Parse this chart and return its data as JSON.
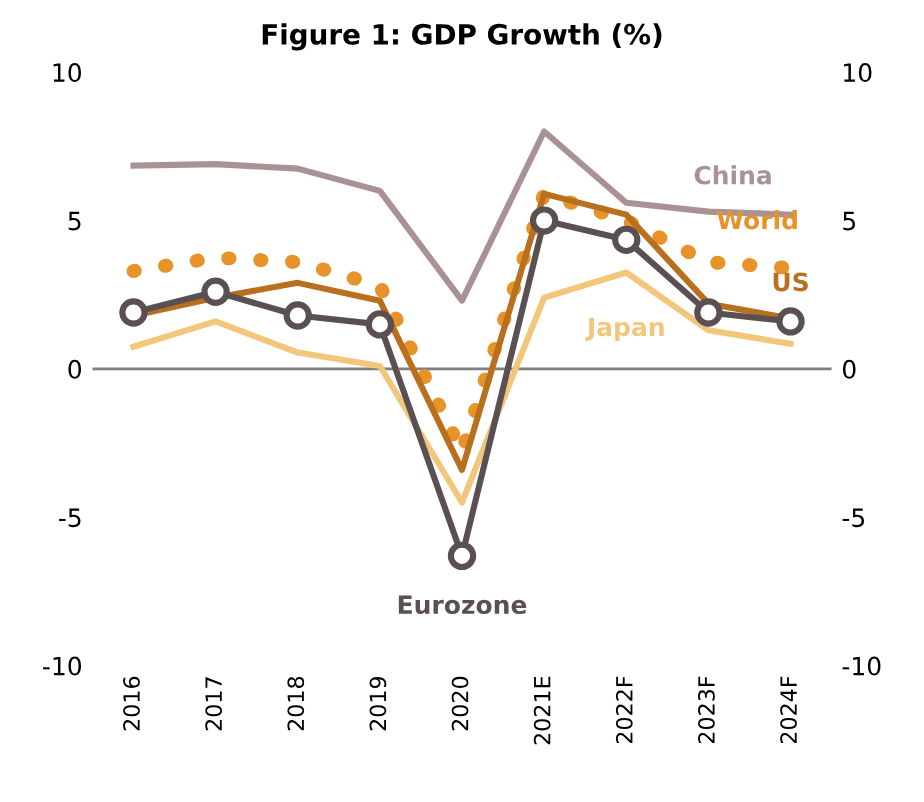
{
  "chart_data": {
    "type": "line",
    "title": "Figure 1: GDP Growth (%)",
    "categories": [
      "2016",
      "2017",
      "2018",
      "2019",
      "2020",
      "2021E",
      "2022F",
      "2023F",
      "2024F"
    ],
    "series": [
      {
        "name": "China",
        "color": "#a89294",
        "values": [
          6.85,
          6.9,
          6.75,
          6.0,
          2.3,
          8.0,
          5.6,
          5.3,
          5.2
        ]
      },
      {
        "name": "World",
        "color": "#e8932a",
        "line_style": "dotted",
        "values": [
          3.3,
          3.75,
          3.6,
          2.8,
          -2.8,
          5.9,
          5.0,
          3.6,
          3.4
        ]
      },
      {
        "name": "US",
        "color": "#b86f1e",
        "values": [
          1.8,
          2.4,
          2.9,
          2.3,
          -3.4,
          5.9,
          5.2,
          2.2,
          1.7
        ]
      },
      {
        "name": "Japan",
        "color": "#f3c77b",
        "values": [
          0.75,
          1.6,
          0.55,
          0.1,
          -4.5,
          2.4,
          3.25,
          1.3,
          0.85
        ]
      },
      {
        "name": "Eurozone",
        "color": "#5a5052",
        "marker": "circle",
        "values": [
          1.9,
          2.6,
          1.8,
          1.5,
          -6.3,
          5.0,
          4.35,
          1.9,
          1.6
        ]
      }
    ],
    "ylim": [
      -10,
      10
    ],
    "yticks": [
      -10,
      -5,
      0,
      5,
      10
    ],
    "y2lim": [
      -10,
      10
    ],
    "y2ticks": [
      -10,
      -5,
      0,
      5,
      10
    ],
    "ref_lines": [
      {
        "axis": "y",
        "value": 0,
        "color": "#7f7f7f"
      }
    ],
    "grid": false,
    "legend": false
  }
}
